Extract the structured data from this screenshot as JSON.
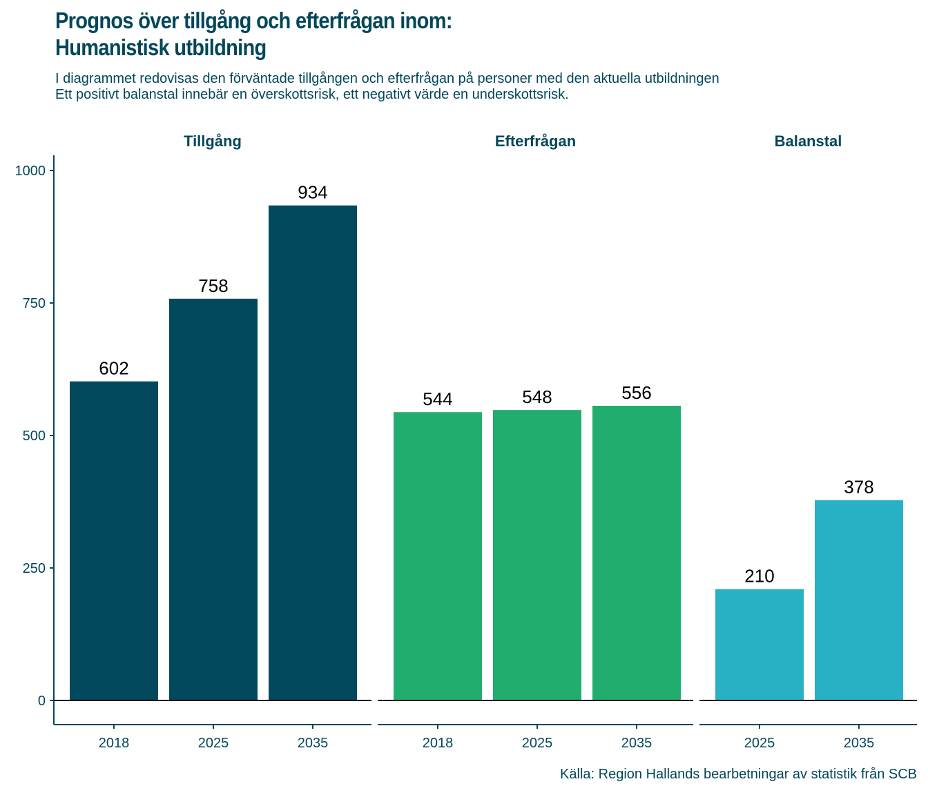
{
  "title_line1": "Prognos över tillgång och efterfrågan inom:",
  "title_line2": "Humanistisk utbildning",
  "subtitle_line1": "I diagrammet redovisas den förväntade tillgången och efterfrågan på personer med den aktuella utbildningen",
  "subtitle_line2": "Ett positivt balanstal innebär en överskottsrisk, ett negativt värde en underskottsrisk.",
  "caption": "Källa: Region Hallands bearbetningar av statistik från SCB",
  "chart_data": {
    "type": "bar",
    "title": "Prognos över tillgång och efterfrågan inom: Humanistisk utbildning",
    "xlabel": "",
    "ylabel": "",
    "ylim": [
      -45,
      1030
    ],
    "yticks": [
      0,
      250,
      500,
      750,
      1000
    ],
    "grid": false,
    "legend": "none",
    "facets": [
      {
        "name": "Tillgång",
        "color": "#02495E",
        "categories": [
          "2018",
          "2025",
          "2035"
        ],
        "values": [
          602,
          758,
          934
        ]
      },
      {
        "name": "Efterfrågan",
        "color": "#21AD6E",
        "categories": [
          "2018",
          "2025",
          "2035"
        ],
        "values": [
          544,
          548,
          556
        ]
      },
      {
        "name": "Balanstal",
        "color": "#28B1C5",
        "categories": [
          "2025",
          "2035"
        ],
        "values": [
          210,
          378
        ]
      }
    ]
  }
}
